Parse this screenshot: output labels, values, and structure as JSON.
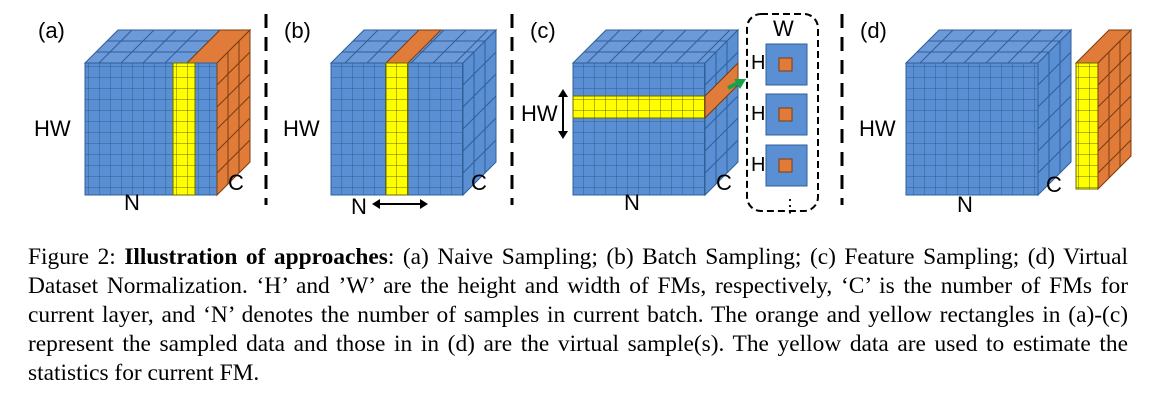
{
  "figure": {
    "panel_a": {
      "tag": "(a)",
      "hw": "HW",
      "n": "N",
      "c": "C"
    },
    "panel_b": {
      "tag": "(b)",
      "hw": "HW",
      "n": "N",
      "c": "C"
    },
    "panel_c": {
      "tag": "(c)",
      "hw": "HW",
      "n": "N",
      "c": "C",
      "w": "W",
      "h": "H",
      "dots": "⋮"
    },
    "panel_d": {
      "tag": "(d)",
      "hw": "HW",
      "n": "N",
      "c": "C"
    },
    "colors": {
      "blue": "#5b8fd4",
      "grid": "#2f5f99",
      "yellow": "#ffff00",
      "orange": "#e07b39",
      "green": "#16a34a"
    }
  },
  "caption": {
    "label": "Figure 2:",
    "bold": "Illustration of approaches",
    "text": ": (a) Naive Sampling; (b) Batch Sampling; (c) Feature Sampling; (d) Virtual Dataset Normalization. ‘H’ and ’W’ are the height and width of FMs, respectively, ‘C’ is the number of FMs for current layer, and ‘N’ denotes the number of samples in current batch. The orange and yellow rectangles in (a)-(c) represent the sampled data and those in in (d) are the virtual sample(s). The yellow data are used to estimate the statistics for current FM."
  }
}
